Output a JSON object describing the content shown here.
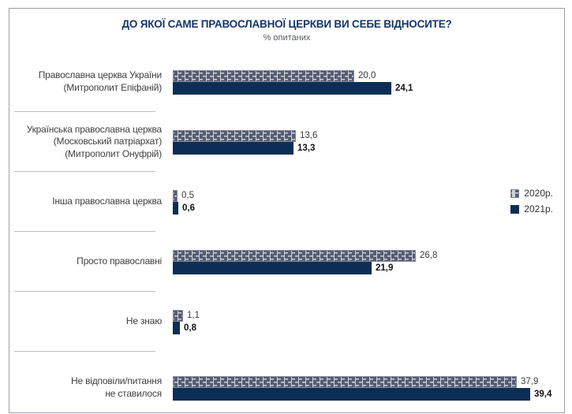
{
  "chart_data": {
    "type": "bar",
    "orientation": "horizontal",
    "title": "ДО ЯКОЇ САМЕ ПРАВОСЛАВНОЇ ЦЕРКВИ ВИ СЕБЕ ВІДНОСИТЕ?",
    "subtitle": "% опитаних",
    "categories": [
      [
        "Православна церква України",
        "(Митрополит Епіфаній)"
      ],
      [
        "Українська православна церква",
        "(Московський патріархат)",
        "(Митрополит Онуфрій)"
      ],
      [
        "Інша православна церква"
      ],
      [
        "Просто православні"
      ],
      [
        "Не знаю"
      ],
      [
        "Не відповіли/питання",
        "не ставилося"
      ]
    ],
    "series": [
      {
        "name": "2020р.",
        "values": [
          20.0,
          13.6,
          0.5,
          26.8,
          1.1,
          37.9
        ]
      },
      {
        "name": "2021р.",
        "values": [
          24.1,
          13.3,
          0.6,
          21.9,
          0.8,
          39.4
        ]
      }
    ],
    "value_format": "comma-decimal",
    "xlim": [
      0,
      40
    ],
    "grid": false,
    "legend_position": "right",
    "colors": {
      "series_2020_fill": "#ced0da",
      "series_2020_hatch": "#555d72",
      "series_2020_border": "#868b99",
      "series_2021_fill": "#0d2e54",
      "title_color": "#16356b"
    }
  }
}
